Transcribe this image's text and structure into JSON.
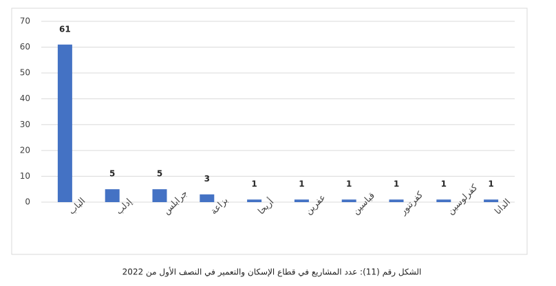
{
  "chart_data": {
    "type": "bar",
    "categories": [
      "الباب",
      "إدلب",
      "جرابلس",
      "بزاعة",
      "أريحا",
      "عفرين",
      "قباسين",
      "كفرتنور",
      "كفرلوسين",
      "الدانا"
    ],
    "values": [
      61,
      5,
      5,
      3,
      1,
      1,
      1,
      1,
      1,
      1
    ],
    "color": "#4472c4",
    "ylim": [
      0,
      70
    ],
    "yticks": [
      0,
      10,
      20,
      30,
      40,
      50,
      60,
      70
    ],
    "grid": true,
    "caption": "الشكل رقم (11): عدد المشاريع في قطاع الإسكان والتعمير في النصف الأول من 2022"
  }
}
